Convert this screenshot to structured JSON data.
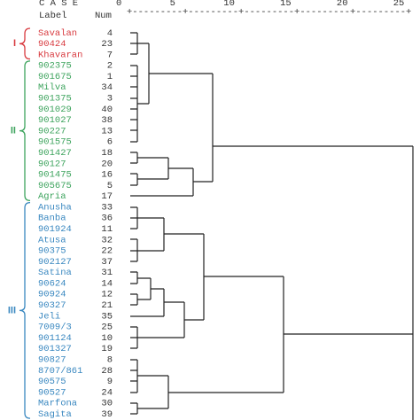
{
  "header": {
    "case": "C A S E",
    "label": "Label",
    "num": "Num",
    "scale": "+---------+---------+---------+---------+---------+",
    "ticks": [
      "0",
      "5",
      "10",
      "15",
      "20",
      "25"
    ]
  },
  "groups": [
    {
      "name": "I",
      "color": "#d83a3f",
      "rows": [
        [
          "Savalan",
          4
        ],
        [
          "90424",
          23
        ],
        [
          "Khavaran",
          7
        ]
      ]
    },
    {
      "name": "II",
      "color": "#3ea45e",
      "rows": [
        [
          "902375",
          2
        ],
        [
          "901675",
          1
        ],
        [
          "Milva",
          34
        ],
        [
          "901375",
          3
        ],
        [
          "901029",
          40
        ],
        [
          "901027",
          38
        ],
        [
          "90227",
          13
        ],
        [
          "901575",
          6
        ],
        [
          "901427",
          18
        ],
        [
          "90127",
          20
        ],
        [
          "901475",
          16
        ],
        [
          "905675",
          5
        ],
        [
          "Agria",
          17
        ]
      ]
    },
    {
      "name": "III",
      "color": "#3a88c0",
      "rows": [
        [
          "Anusha",
          33
        ],
        [
          "Banba",
          36
        ],
        [
          "901924",
          11
        ],
        [
          "Atusa",
          32
        ],
        [
          "90375",
          22
        ],
        [
          "902127",
          37
        ],
        [
          "Satina",
          31
        ],
        [
          "90624",
          14
        ],
        [
          "90924",
          12
        ],
        [
          "90327",
          21
        ],
        [
          "Jeli",
          35
        ],
        [
          "7009/3",
          25
        ],
        [
          "901124",
          10
        ],
        [
          "901327",
          19
        ],
        [
          "90827",
          8
        ],
        [
          "8707/861",
          28
        ],
        [
          "90575",
          9
        ],
        [
          "90527",
          24
        ],
        [
          "Marfona",
          30
        ],
        [
          "Sagita",
          39
        ]
      ]
    }
  ]
}
